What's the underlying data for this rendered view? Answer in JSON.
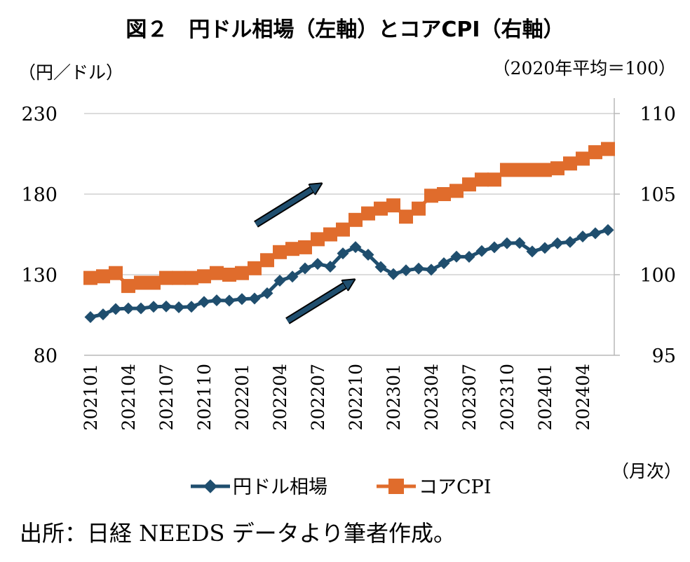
{
  "chart_data": {
    "type": "line",
    "title": "図２　円ドル相場（左軸）とコアCPI（右軸）",
    "left_unit": "（円／ドル）",
    "right_unit": "（2020年平均＝100）",
    "x_unit": "（月次）",
    "source": "出所：日経 NEEDS データより筆者作成。",
    "y_left": {
      "min": 80,
      "max": 230,
      "ticks": [
        80,
        130,
        180,
        230
      ]
    },
    "y_right": {
      "min": 95,
      "max": 110,
      "ticks": [
        95,
        100,
        105,
        110
      ]
    },
    "x_tick_labels": [
      "202101",
      "202104",
      "202107",
      "202110",
      "202201",
      "202204",
      "202207",
      "202210",
      "202301",
      "202304",
      "202307",
      "202310",
      "202401",
      "202404"
    ],
    "months": [
      "202101",
      "202102",
      "202103",
      "202104",
      "202105",
      "202106",
      "202107",
      "202108",
      "202109",
      "202110",
      "202111",
      "202112",
      "202201",
      "202202",
      "202203",
      "202204",
      "202205",
      "202206",
      "202207",
      "202208",
      "202209",
      "202210",
      "202211",
      "202212",
      "202301",
      "202302",
      "202303",
      "202304",
      "202305",
      "202306",
      "202307",
      "202308",
      "202309",
      "202310",
      "202311",
      "202312",
      "202401",
      "202402",
      "202403",
      "202404",
      "202405",
      "202406"
    ],
    "series": [
      {
        "name": "円ドル相場",
        "axis": "left",
        "color": "#1f4e6e",
        "marker": "diamond",
        "values": [
          103.7,
          105.4,
          108.7,
          109.1,
          109.1,
          110.1,
          110.3,
          109.8,
          110.1,
          113.1,
          114.1,
          113.9,
          114.9,
          115.2,
          118.5,
          126.3,
          128.8,
          133.9,
          136.7,
          135.0,
          143.2,
          147.1,
          142.4,
          134.8,
          130.4,
          132.7,
          133.8,
          133.1,
          137.1,
          141.2,
          141.1,
          144.7,
          147.0,
          149.5,
          149.7,
          144.4,
          146.6,
          149.5,
          150.3,
          153.7,
          155.7,
          157.7
        ]
      },
      {
        "name": "コアCPI",
        "axis": "right",
        "color": "#e06c2c",
        "marker": "square",
        "values": [
          99.8,
          99.9,
          100.1,
          99.3,
          99.5,
          99.5,
          99.8,
          99.8,
          99.8,
          99.9,
          100.1,
          100.0,
          100.1,
          100.4,
          100.9,
          101.4,
          101.6,
          101.7,
          102.2,
          102.5,
          102.8,
          103.4,
          103.8,
          104.1,
          104.3,
          103.6,
          104.1,
          104.9,
          105.0,
          105.2,
          105.6,
          105.9,
          105.9,
          106.5,
          106.5,
          106.5,
          106.5,
          106.6,
          106.9,
          107.2,
          107.6,
          107.8
        ]
      }
    ],
    "annotations": [
      "arrow",
      "arrow"
    ]
  }
}
